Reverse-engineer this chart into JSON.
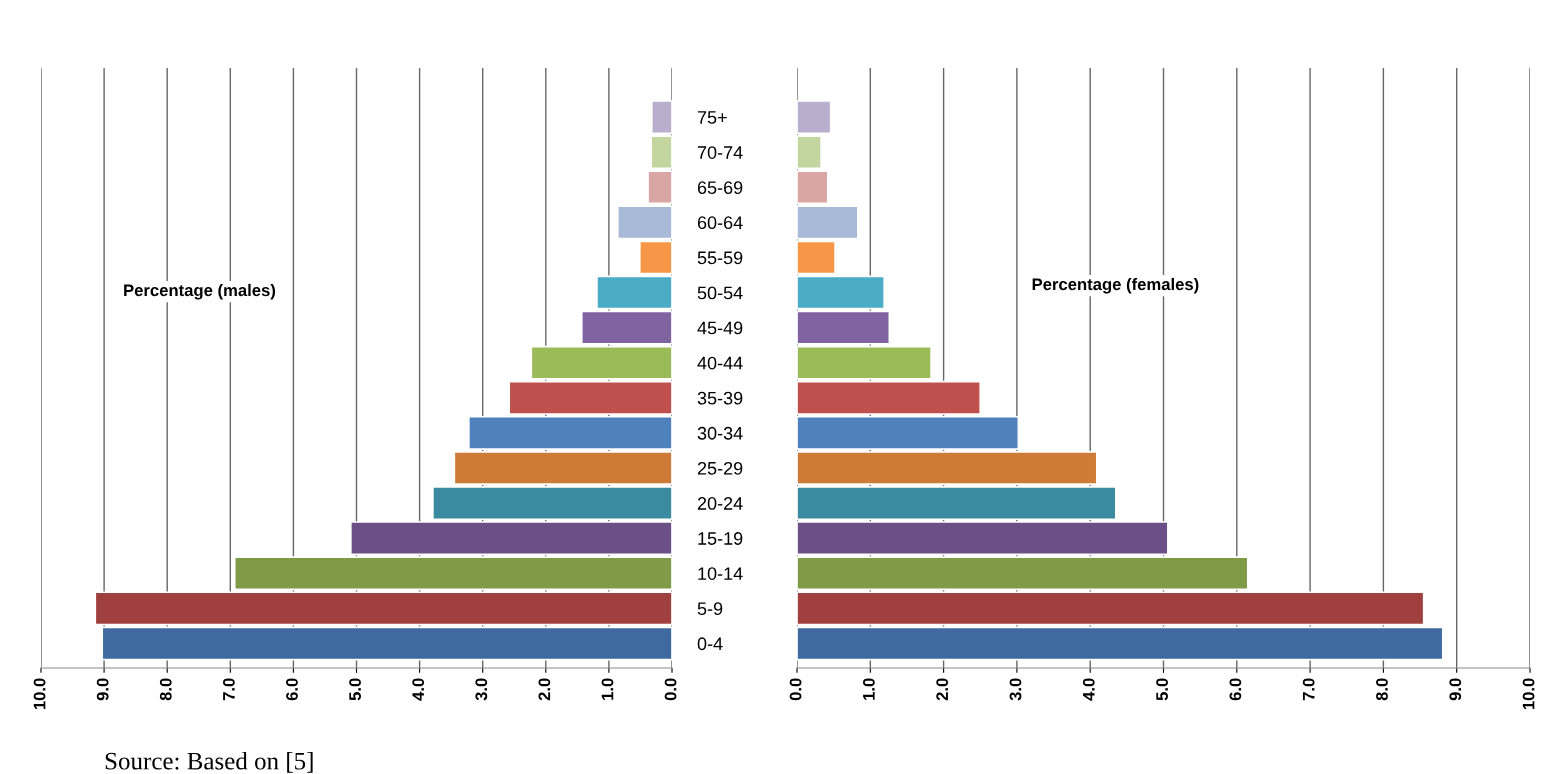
{
  "chart_data": [
    {
      "type": "bar",
      "orientation": "horizontal",
      "grid": "x",
      "annotations": [
        "Percentage (males)",
        "Source: Based on [5]"
      ],
      "categories": [
        "75+",
        "70-74",
        "65-69",
        "60-64",
        "55-59",
        "50-54",
        "45-49",
        "40-44",
        "35-39",
        "30-34",
        "25-29",
        "20-24",
        "15-19",
        "10-14",
        "5-9",
        "0-4"
      ],
      "values": [
        0.32,
        0.33,
        0.38,
        0.86,
        0.51,
        1.19,
        1.43,
        2.23,
        2.58,
        3.22,
        3.45,
        3.79,
        5.09,
        6.93,
        9.14,
        9.03
      ],
      "colors": [
        "#b9afcc",
        "#c4d6a0",
        "#d9a6a5",
        "#a9b9d8",
        "#f79646",
        "#4bacc6",
        "#8064a2",
        "#9bbb59",
        "#c0504d",
        "#4f81bd",
        "#cd7b37",
        "#3a8ba0",
        "#6a5087",
        "#7f9b48",
        "#a0403e",
        "#3f6aa0"
      ],
      "xlim": [
        10,
        0
      ],
      "xticks": [
        {
          "value": 10,
          "label": "10.0"
        },
        {
          "value": 9,
          "label": "9.0"
        },
        {
          "value": 8,
          "label": "8.0"
        },
        {
          "value": 7,
          "label": "7.0"
        },
        {
          "value": 6,
          "label": "6.0"
        },
        {
          "value": 5,
          "label": "5.0"
        },
        {
          "value": 4,
          "label": "4.0"
        },
        {
          "value": 3,
          "label": "3.0"
        },
        {
          "value": 2,
          "label": "2.0"
        },
        {
          "value": 1,
          "label": "1.0"
        },
        {
          "value": 0,
          "label": "0.0"
        }
      ]
    },
    {
      "type": "bar",
      "orientation": "horizontal",
      "grid": "x",
      "annotations": [
        "Percentage (females)"
      ],
      "categories": [
        null,
        null,
        null,
        null,
        null,
        null,
        null,
        null,
        null,
        null,
        null,
        null,
        null,
        null,
        null,
        null
      ],
      "values": [
        0.46,
        0.33,
        0.42,
        0.83,
        0.52,
        1.19,
        1.26,
        1.83,
        2.5,
        3.02,
        4.09,
        4.35,
        5.06,
        6.15,
        8.55,
        8.81
      ],
      "colors": [
        "#b9afcc",
        "#c4d6a0",
        "#d9a6a5",
        "#a9b9d8",
        "#f79646",
        "#4bacc6",
        "#8064a2",
        "#9bbb59",
        "#c0504d",
        "#4f81bd",
        "#cd7b37",
        "#3a8ba0",
        "#6a5087",
        "#7f9b48",
        "#a0403e",
        "#3f6aa0"
      ],
      "xlim": [
        0,
        10
      ],
      "xticks": [
        {
          "value": 0,
          "label": "0.0"
        },
        {
          "value": 1,
          "label": "1.0"
        },
        {
          "value": 2,
          "label": "2.0"
        },
        {
          "value": 3,
          "label": "3.0"
        },
        {
          "value": 4,
          "label": "4.0"
        },
        {
          "value": 5,
          "label": "5.0"
        },
        {
          "value": 6,
          "label": "6.0"
        },
        {
          "value": 7,
          "label": "7.0"
        },
        {
          "value": 8,
          "label": "8.0"
        },
        {
          "value": 9,
          "label": "9.0"
        },
        {
          "value": 10,
          "label": "10.0"
        }
      ]
    }
  ]
}
